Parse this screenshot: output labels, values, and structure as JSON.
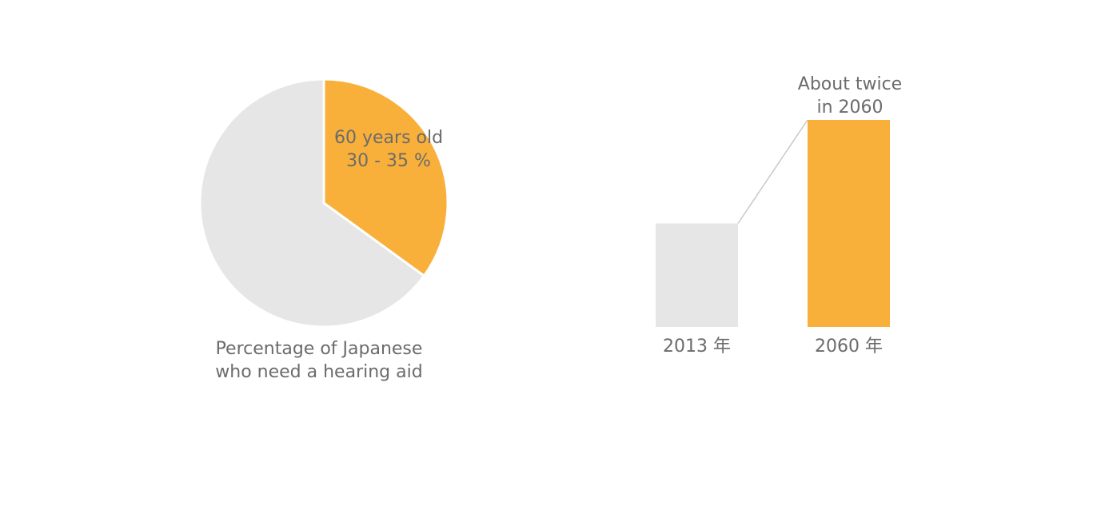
{
  "colors": {
    "highlight": "#f9b03a",
    "base": "#e6e6e6",
    "connector": "#c8c8c8",
    "text": "#6b6b6b"
  },
  "chart_data": [
    {
      "type": "pie",
      "title": "Percentage of Japanese who need a hearing aid",
      "title_lines": [
        "Percentage of Japanese",
        "who need a hearing aid"
      ],
      "slices": [
        {
          "value": 35,
          "color": "#f9b03a",
          "label_lines": [
            "60 years old",
            "30 - 35 %"
          ]
        },
        {
          "value": 65,
          "color": "#e6e6e6",
          "label_lines": []
        }
      ]
    },
    {
      "type": "bar",
      "categories": [
        "2013 年",
        "2060 年"
      ],
      "values": [
        1,
        2
      ],
      "colors": [
        "#e6e6e6",
        "#f9b03a"
      ],
      "ylim": [
        0,
        2
      ],
      "annotation_lines": [
        "About twice",
        "in 2060"
      ]
    }
  ]
}
